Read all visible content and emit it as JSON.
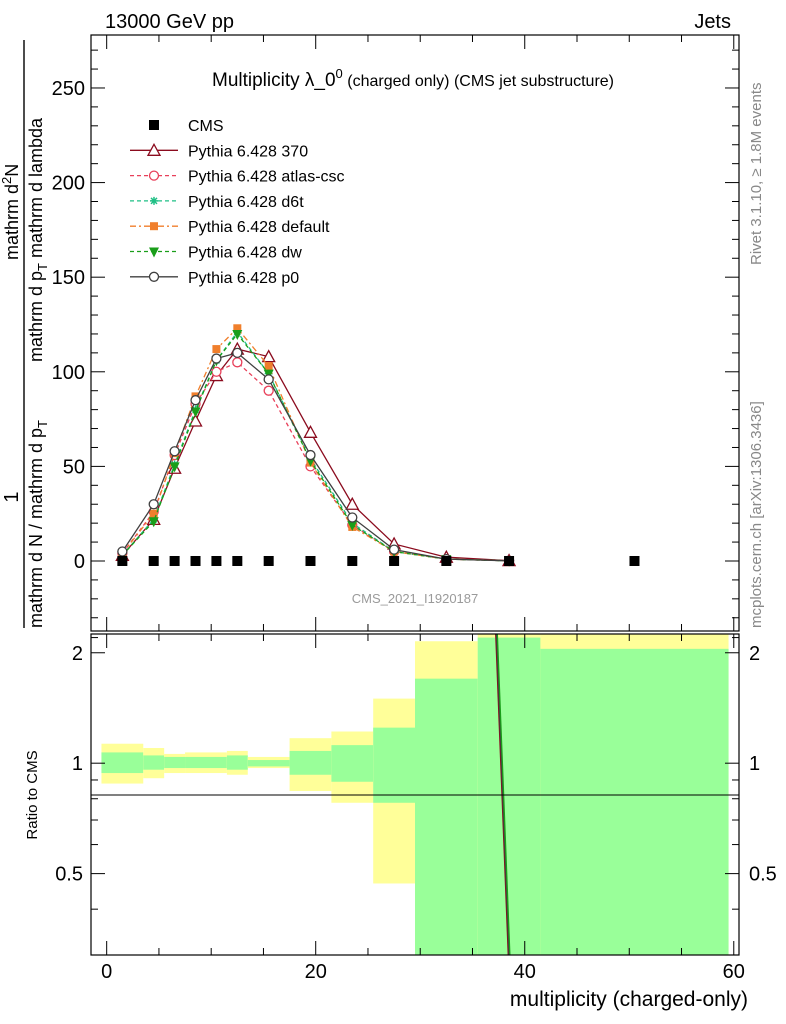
{
  "header": {
    "left_label": "13000 GeV pp",
    "right_label": "Jets"
  },
  "side_labels": {
    "rivet": "Rivet 3.1.10, ≥ 1.8M events",
    "mcplots": "mcplots.cern.ch [arXiv:1306.3436]"
  },
  "chart_data": [
    {
      "type": "line",
      "title_main": "Multiplicity λ_0",
      "title_sup": "0",
      "title_extra": "(charged only) (CMS jet substructure)",
      "xlabel": "multiplicity (charged-only)",
      "ylabel_top": "1",
      "ylabel_denominator": "mathrm d N / mathrm d p",
      "ylabel_denominator_sub": "T",
      "ylabel_numerator": "mathrm d",
      "ylabel_numerator_sup": "2",
      "ylabel_numerator_tail": "N",
      "ylabel_rest": "mathrm d p",
      "ylabel_rest_sub": "T",
      "ylabel_rest_tail": "mathrm d lambda",
      "xlim": [
        -1.5,
        60.5
      ],
      "ylim": [
        -37,
        278
      ],
      "y_ticks": [
        0,
        50,
        100,
        150,
        200,
        250
      ],
      "x_ticks": [
        0,
        20,
        40,
        60
      ],
      "watermark": "CMS_2021_I1920187",
      "legend_position": "top-left",
      "series": [
        {
          "name": "CMS",
          "color": "#000000",
          "style": "data",
          "x": [
            1.5,
            4.5,
            6.5,
            8.5,
            10.5,
            12.5,
            15.5,
            19.5,
            23.5,
            27.5,
            32.5,
            38.5,
            50.5
          ],
          "y": [
            0,
            0,
            0,
            0,
            0,
            0,
            0,
            0,
            0,
            0,
            0,
            0,
            0
          ]
        },
        {
          "name": "Pythia 6.428 370",
          "color": "#8b0b1e",
          "dash": "",
          "marker": "triangle-open",
          "x": [
            1.5,
            4.5,
            6.5,
            8.5,
            10.5,
            12.5,
            15.5,
            19.5,
            23.5,
            27.5,
            32.5,
            38.5
          ],
          "y": [
            3,
            22,
            49,
            74,
            98,
            112,
            108,
            68,
            30,
            9,
            2,
            0.2
          ]
        },
        {
          "name": "Pythia 6.428 atlas-csc",
          "color": "#e8405a",
          "dash": "4,3",
          "marker": "circle-open",
          "x": [
            1.5,
            4.5,
            6.5,
            8.5,
            10.5,
            12.5,
            15.5,
            19.5,
            23.5,
            27.5,
            32.5,
            38.5
          ],
          "y": [
            4,
            26,
            56,
            83,
            100,
            105,
            90,
            50,
            19,
            5,
            1,
            0.1
          ]
        },
        {
          "name": "Pythia 6.428 d6t",
          "color": "#1fbf85",
          "dash": "4,3",
          "marker": "asterisk",
          "x": [
            1.5,
            4.5,
            6.5,
            8.5,
            10.5,
            12.5,
            15.5,
            19.5,
            23.5,
            27.5,
            32.5,
            38.5
          ],
          "y": [
            3,
            22,
            51,
            80,
            106,
            121,
            99,
            54,
            20,
            5,
            1,
            0.1
          ]
        },
        {
          "name": "Pythia 6.428 default",
          "color": "#f07f2c",
          "dash": "6,3,2,3",
          "marker": "square",
          "x": [
            1.5,
            4.5,
            6.5,
            8.5,
            10.5,
            12.5,
            15.5,
            19.5,
            23.5,
            27.5,
            32.5,
            38.5
          ],
          "y": [
            4,
            25,
            57,
            87,
            112,
            123,
            103,
            52,
            18,
            5,
            1,
            0.1
          ]
        },
        {
          "name": "Pythia 6.428 dw",
          "color": "#1a9e1a",
          "dash": "4,3",
          "marker": "triangle-down",
          "x": [
            1.5,
            4.5,
            6.5,
            8.5,
            10.5,
            12.5,
            15.5,
            19.5,
            23.5,
            27.5,
            32.5,
            38.5
          ],
          "y": [
            3,
            21,
            50,
            79,
            106,
            120,
            99,
            53,
            19,
            5,
            1,
            0.1
          ]
        },
        {
          "name": "Pythia 6.428 p0",
          "color": "#404040",
          "dash": "",
          "marker": "circle-open",
          "x": [
            1.5,
            4.5,
            6.5,
            8.5,
            10.5,
            12.5,
            15.5,
            19.5,
            23.5,
            27.5,
            32.5,
            38.5
          ],
          "y": [
            5,
            30,
            58,
            85,
            107,
            110,
            96,
            56,
            23,
            6,
            1,
            0.1
          ]
        }
      ]
    },
    {
      "type": "area",
      "ylabel": "Ratio to CMS",
      "xlim": [
        -1.5,
        60.5
      ],
      "ylim": [
        0.3,
        2.25
      ],
      "y_ticks": [
        0.5,
        1,
        2
      ],
      "y_tick_labels": [
        "0.5",
        "1",
        "2"
      ],
      "x_ticks": [
        0,
        20,
        40,
        60
      ],
      "x_tick_labels": [
        "0",
        "20",
        "40",
        "60"
      ],
      "band_colors": {
        "stat": "#99ff99",
        "total": "#ffff99"
      },
      "bands": [
        {
          "x_lo": -0.5,
          "x_hi": 3.5,
          "inner": [
            0.94,
            1.07
          ],
          "outer": [
            0.88,
            1.13
          ]
        },
        {
          "x_lo": 3.5,
          "x_hi": 5.5,
          "inner": [
            0.96,
            1.05
          ],
          "outer": [
            0.91,
            1.1
          ]
        },
        {
          "x_lo": 5.5,
          "x_hi": 7.5,
          "inner": [
            0.97,
            1.04
          ],
          "outer": [
            0.94,
            1.06
          ]
        },
        {
          "x_lo": 7.5,
          "x_hi": 11.5,
          "inner": [
            0.97,
            1.04
          ],
          "outer": [
            0.94,
            1.07
          ]
        },
        {
          "x_lo": 11.5,
          "x_hi": 13.5,
          "inner": [
            0.96,
            1.05
          ],
          "outer": [
            0.93,
            1.08
          ]
        },
        {
          "x_lo": 13.5,
          "x_hi": 17.5,
          "inner": [
            0.98,
            1.02
          ],
          "outer": [
            0.97,
            1.04
          ]
        },
        {
          "x_lo": 17.5,
          "x_hi": 21.5,
          "inner": [
            0.93,
            1.08
          ],
          "outer": [
            0.84,
            1.17
          ]
        },
        {
          "x_lo": 21.5,
          "x_hi": 25.5,
          "inner": [
            0.89,
            1.12
          ],
          "outer": [
            0.78,
            1.22
          ]
        },
        {
          "x_lo": 25.5,
          "x_hi": 29.5,
          "inner": [
            0.78,
            1.25
          ],
          "outer": [
            0.47,
            1.5
          ]
        },
        {
          "x_lo": 29.5,
          "x_hi": 35.5,
          "inner": [
            0.3,
            1.7
          ],
          "outer": [
            0.3,
            2.15
          ]
        },
        {
          "x_lo": 35.5,
          "x_hi": 41.5,
          "inner": [
            0.3,
            2.2
          ],
          "outer": [
            0.3,
            2.25
          ]
        },
        {
          "x_lo": 41.5,
          "x_hi": 59.5,
          "inner": [
            0.3,
            2.05
          ],
          "outer": [
            0.3,
            2.25
          ]
        }
      ],
      "mc_line": {
        "x": [
          37.3,
          38.5
        ],
        "y": [
          2.25,
          0.3
        ],
        "colors": [
          "#8b0b1e",
          "#404040",
          "#1a9e1a"
        ]
      }
    }
  ]
}
